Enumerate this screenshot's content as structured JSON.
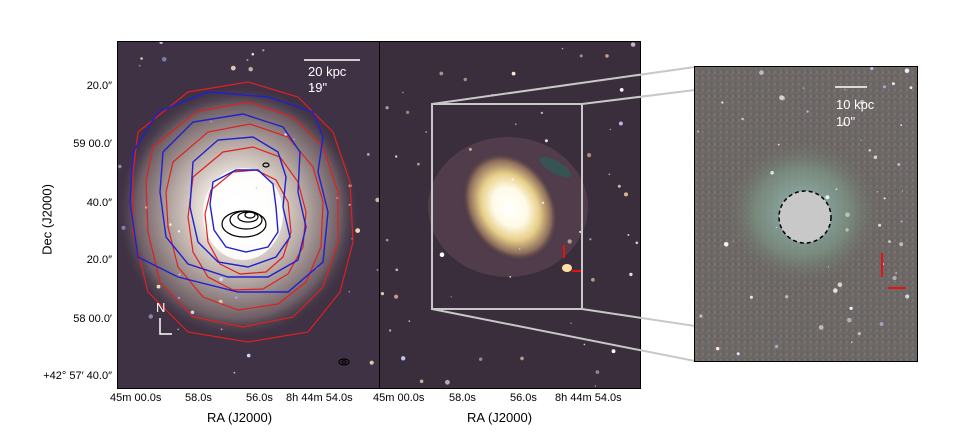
{
  "left_panel": {
    "scalebar_label": "20 kpc",
    "scalebar_arcsec": "19\"",
    "compass_north": "N",
    "dec_ticks": [
      {
        "main": "20.0",
        "sup": "″",
        "pre": "",
        "deg": ""
      },
      {
        "main": "59 00.0",
        "sup": "′",
        "pre": "",
        "deg": ""
      },
      {
        "main": "40.0",
        "sup": "″",
        "pre": "",
        "deg": ""
      },
      {
        "main": "20.0",
        "sup": "″",
        "pre": "",
        "deg": ""
      },
      {
        "main": "58 00.0",
        "sup": "′",
        "pre": "",
        "deg": ""
      },
      {
        "main": "+42° 57′ 40.0",
        "sup": "″",
        "pre": "",
        "deg": ""
      }
    ],
    "ra_ticks": [
      "45m 00.0s",
      "58.0s",
      "56.0s",
      "8h 44m 54.0s"
    ],
    "xlabel": "RA (J2000)",
    "ylabel": "Dec (J2000)"
  },
  "middle_panel": {
    "ra_ticks": [
      "45m 00.0s",
      "58.0s",
      "56.0s",
      "8h 44m 54.0s"
    ],
    "xlabel": "RA (J2000)"
  },
  "inset_panel": {
    "scalebar_label": "10 kpc",
    "scalebar_arcsec": "10\""
  },
  "colors": {
    "contour_red": "#e02020",
    "contour_blue": "#2020d0",
    "contour_black": "#000000",
    "marker_red": "#e81010",
    "zoom_box": "#c8c8c8"
  },
  "icons": [
    "compass-icon",
    "arrow-marker-icon",
    "masked-star-icon"
  ]
}
